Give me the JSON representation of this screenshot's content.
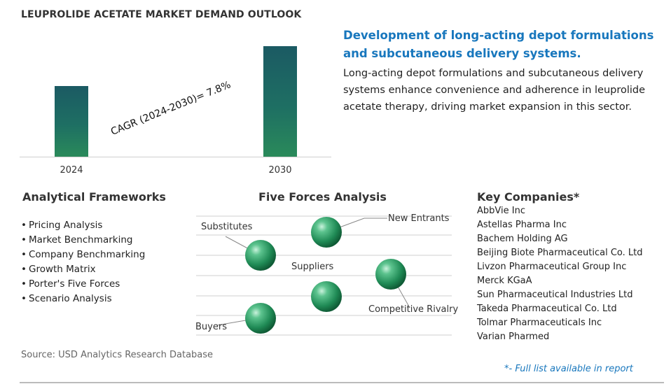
{
  "title": "LEUPROLIDE ACETATE MARKET DEMAND OUTLOOK",
  "chart_data": {
    "type": "bar",
    "categories": [
      "2024",
      "2030"
    ],
    "values": [
      1,
      1.57
    ],
    "annotation": "CAGR (2024-2030)=  7.8%",
    "colors": [
      "#1b5a63",
      "#2a8a5a"
    ]
  },
  "development": {
    "title": "Development of long-acting depot formulations and subcutaneous delivery systems.",
    "body": "Long-acting depot formulations and subcutaneous delivery systems enhance convenience and adherence in leuprolide acetate therapy, driving market expansion in this sector."
  },
  "frameworks": {
    "heading": "Analytical Frameworks",
    "items": [
      "Pricing Analysis",
      "Market Benchmarking",
      "Company Benchmarking",
      "Growth Matrix",
      "Porter's Five Forces",
      "Scenario Analysis"
    ]
  },
  "five_forces": {
    "heading": "Five Forces Analysis",
    "forces": [
      "Substitutes",
      "New Entrants",
      "Suppliers",
      "Competitive Rivalry",
      "Buyers"
    ]
  },
  "companies": {
    "heading": "Key Companies*",
    "items": [
      "AbbVie Inc",
      "Astellas Pharma Inc",
      "Bachem Holding AG",
      "Beijing Biote Pharmaceutical Co. Ltd",
      "Livzon Pharmaceutical Group Inc",
      "Merck KGaA",
      "Sun Pharmaceutical Industries Ltd",
      "Takeda Pharmaceutical Co. Ltd",
      "Tolmar Pharmaceuticals Inc",
      "Varian Pharmed"
    ]
  },
  "source": "Source: USD Analytics Research Database",
  "note": "*- Full list available in report"
}
